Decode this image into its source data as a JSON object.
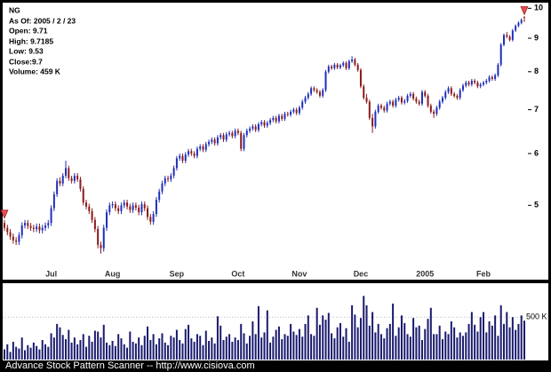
{
  "chart_data": {
    "type": "candlestick",
    "title": "NG",
    "info": [
      "As Of: 2005 / 2 / 23",
      "Open: 9.71",
      "High: 9.7185",
      "Low: 9.53",
      "Close:9.7",
      "Volume: 459 K"
    ],
    "categories": [
      null,
      null,
      null,
      null,
      null,
      null,
      null,
      null,
      null,
      null,
      null,
      null,
      null,
      null,
      null,
      null,
      "Jul",
      null,
      null,
      null,
      null,
      null,
      null,
      null,
      null,
      null,
      null,
      null,
      null,
      null,
      null,
      null,
      null,
      null,
      null,
      null,
      null,
      "Aug",
      null,
      null,
      null,
      null,
      null,
      null,
      null,
      null,
      null,
      null,
      null,
      null,
      null,
      null,
      null,
      null,
      null,
      null,
      null,
      null,
      null,
      "Sep",
      null,
      null,
      null,
      null,
      null,
      null,
      null,
      null,
      null,
      null,
      null,
      null,
      null,
      null,
      null,
      null,
      null,
      null,
      null,
      null,
      "Oct",
      null,
      null,
      null,
      null,
      null,
      null,
      null,
      null,
      null,
      null,
      null,
      null,
      null,
      null,
      null,
      null,
      null,
      null,
      null,
      null,
      "Nov",
      null,
      null,
      null,
      null,
      null,
      null,
      null,
      null,
      null,
      null,
      null,
      null,
      null,
      null,
      null,
      null,
      null,
      null,
      null,
      null,
      "Dec",
      null,
      null,
      null,
      null,
      null,
      null,
      null,
      null,
      null,
      null,
      null,
      null,
      null,
      null,
      null,
      null,
      null,
      null,
      null,
      null,
      null,
      "2005",
      null,
      null,
      null,
      null,
      null,
      null,
      null,
      null,
      null,
      null,
      null,
      null,
      null,
      null,
      null,
      null,
      null,
      null,
      null,
      "Feb",
      null,
      null,
      null,
      null,
      null,
      null,
      null,
      null,
      null,
      null,
      null,
      null,
      null,
      null
    ],
    "open": [
      4.7,
      4.62,
      4.55,
      4.48,
      4.42,
      4.4,
      4.5,
      4.66,
      4.7,
      4.65,
      4.62,
      4.6,
      4.64,
      4.58,
      4.62,
      4.66,
      4.7,
      4.95,
      5.2,
      5.45,
      5.4,
      5.55,
      5.7,
      5.5,
      5.45,
      5.55,
      5.48,
      5.3,
      5.05,
      4.98,
      4.9,
      4.75,
      4.6,
      4.35,
      4.3,
      4.62,
      4.88,
      5.0,
      5.02,
      4.95,
      4.9,
      5.0,
      5.05,
      4.98,
      4.92,
      5.0,
      4.96,
      4.88,
      5.02,
      4.95,
      4.8,
      4.72,
      4.85,
      5.1,
      5.25,
      5.4,
      5.5,
      5.48,
      5.55,
      5.7,
      5.9,
      5.95,
      5.85,
      5.98,
      6.05,
      6.0,
      5.95,
      6.1,
      6.15,
      6.08,
      6.2,
      6.25,
      6.3,
      6.22,
      6.35,
      6.4,
      6.3,
      6.42,
      6.45,
      6.38,
      6.5,
      6.45,
      6.1,
      6.4,
      6.5,
      6.55,
      6.6,
      6.52,
      6.65,
      6.7,
      6.62,
      6.68,
      6.75,
      6.8,
      6.72,
      6.85,
      6.78,
      6.9,
      6.88,
      6.95,
      7.0,
      6.92,
      7.05,
      7.2,
      7.3,
      7.4,
      7.55,
      7.5,
      7.45,
      7.35,
      7.5,
      8.0,
      8.15,
      8.1,
      8.2,
      8.12,
      8.18,
      8.25,
      8.1,
      8.3,
      8.35,
      8.2,
      8.05,
      7.6,
      7.3,
      7.2,
      6.8,
      6.6,
      6.95,
      7.1,
      7.05,
      6.98,
      7.15,
      7.2,
      7.1,
      7.25,
      7.3,
      7.18,
      7.22,
      7.35,
      7.4,
      7.28,
      7.2,
      7.15,
      7.45,
      7.35,
      7.1,
      6.95,
      6.9,
      7.05,
      7.2,
      7.3,
      7.45,
      7.55,
      7.4,
      7.35,
      7.3,
      7.5,
      7.62,
      7.7,
      7.65,
      7.75,
      7.7,
      7.6,
      7.65,
      7.7,
      7.75,
      7.85,
      7.8,
      7.9,
      8.2,
      8.8,
      9.1,
      9.05,
      8.95,
      9.25,
      9.4,
      9.5,
      9.71
    ],
    "high": [
      4.75,
      4.67,
      4.6,
      4.53,
      4.47,
      4.55,
      4.71,
      4.75,
      4.75,
      4.7,
      4.67,
      4.69,
      4.69,
      4.67,
      4.71,
      4.75,
      5.0,
      5.25,
      5.5,
      5.52,
      5.6,
      5.85,
      5.75,
      5.55,
      5.6,
      5.6,
      5.53,
      5.35,
      5.1,
      5.03,
      4.95,
      4.8,
      4.65,
      4.4,
      4.67,
      4.93,
      5.05,
      5.07,
      5.07,
      5.0,
      5.05,
      5.1,
      5.1,
      5.03,
      5.05,
      5.05,
      5.01,
      5.07,
      5.07,
      5.0,
      4.85,
      4.9,
      5.15,
      5.3,
      5.45,
      5.55,
      5.55,
      5.6,
      5.75,
      5.95,
      6.0,
      6.0,
      6.03,
      6.1,
      6.1,
      6.05,
      6.15,
      6.2,
      6.2,
      6.25,
      6.3,
      6.35,
      6.35,
      6.4,
      6.45,
      6.45,
      6.47,
      6.5,
      6.5,
      6.55,
      6.55,
      6.5,
      6.45,
      6.55,
      6.6,
      6.65,
      6.65,
      6.7,
      6.75,
      6.75,
      6.73,
      6.8,
      6.85,
      6.85,
      6.9,
      6.9,
      6.95,
      6.95,
      7.0,
      7.05,
      7.05,
      7.1,
      7.25,
      7.35,
      7.45,
      7.6,
      7.6,
      7.55,
      7.5,
      7.55,
      8.05,
      8.2,
      8.2,
      8.25,
      8.25,
      8.23,
      8.3,
      8.3,
      8.35,
      8.45,
      8.4,
      8.25,
      8.1,
      7.65,
      7.4,
      7.25,
      6.9,
      7.0,
      7.15,
      7.15,
      7.1,
      7.2,
      7.25,
      7.25,
      7.3,
      7.35,
      7.35,
      7.27,
      7.4,
      7.45,
      7.45,
      7.33,
      7.25,
      7.5,
      7.5,
      7.4,
      7.15,
      7.0,
      7.1,
      7.25,
      7.35,
      7.5,
      7.6,
      7.6,
      7.45,
      7.4,
      7.55,
      7.67,
      7.75,
      7.75,
      7.8,
      7.8,
      7.75,
      7.7,
      7.75,
      7.8,
      7.9,
      7.9,
      7.95,
      8.25,
      8.85,
      9.15,
      9.2,
      9.1,
      9.3,
      9.45,
      9.55,
      9.65,
      9.7185
    ],
    "low": [
      4.57,
      4.5,
      4.43,
      4.37,
      4.35,
      4.35,
      4.45,
      4.61,
      4.6,
      4.57,
      4.55,
      4.55,
      4.53,
      4.53,
      4.57,
      4.61,
      4.65,
      4.9,
      5.15,
      5.35,
      5.35,
      5.5,
      5.45,
      5.4,
      5.4,
      5.43,
      5.25,
      5.0,
      4.93,
      4.85,
      4.7,
      4.55,
      4.3,
      4.22,
      4.25,
      4.57,
      4.83,
      4.95,
      4.9,
      4.85,
      4.85,
      4.95,
      4.93,
      4.87,
      4.87,
      4.91,
      4.83,
      4.83,
      4.9,
      4.75,
      4.67,
      4.67,
      4.8,
      5.05,
      5.2,
      5.35,
      5.43,
      5.43,
      5.5,
      5.65,
      5.85,
      5.8,
      5.8,
      5.93,
      5.95,
      5.9,
      5.9,
      6.05,
      6.03,
      6.03,
      6.15,
      6.2,
      6.17,
      6.17,
      6.3,
      6.25,
      6.25,
      6.37,
      6.33,
      6.33,
      6.4,
      6.05,
      6.05,
      6.35,
      6.45,
      6.5,
      6.47,
      6.47,
      6.6,
      6.57,
      6.57,
      6.63,
      6.7,
      6.67,
      6.67,
      6.73,
      6.73,
      6.83,
      6.83,
      6.9,
      6.87,
      6.87,
      7.0,
      7.15,
      7.25,
      7.35,
      7.45,
      7.4,
      7.3,
      7.3,
      7.45,
      7.95,
      8.05,
      8.05,
      8.07,
      8.07,
      8.13,
      8.05,
      8.05,
      8.25,
      8.15,
      8.0,
      7.55,
      7.25,
      7.15,
      6.75,
      6.45,
      6.55,
      6.9,
      7.0,
      6.93,
      6.93,
      7.1,
      7.05,
      7.05,
      7.2,
      7.13,
      7.13,
      7.17,
      7.3,
      7.23,
      7.15,
      7.1,
      7.1,
      7.3,
      7.05,
      6.9,
      6.8,
      6.85,
      7.0,
      7.15,
      7.25,
      7.4,
      7.35,
      7.3,
      7.25,
      7.25,
      7.45,
      7.57,
      7.6,
      7.6,
      7.65,
      7.55,
      7.55,
      7.6,
      7.65,
      7.7,
      7.75,
      7.75,
      7.85,
      8.15,
      8.75,
      9.0,
      8.9,
      8.9,
      9.2,
      9.35,
      9.45,
      9.53
    ],
    "close": [
      4.62,
      4.55,
      4.48,
      4.42,
      4.4,
      4.5,
      4.66,
      4.7,
      4.65,
      4.62,
      4.6,
      4.64,
      4.58,
      4.62,
      4.66,
      4.7,
      4.95,
      5.2,
      5.45,
      5.4,
      5.55,
      5.7,
      5.5,
      5.45,
      5.55,
      5.48,
      5.3,
      5.05,
      4.98,
      4.9,
      4.75,
      4.6,
      4.35,
      4.3,
      4.62,
      4.88,
      5.0,
      5.02,
      4.95,
      4.9,
      5.0,
      5.05,
      4.98,
      4.92,
      5.0,
      4.96,
      4.88,
      5.02,
      4.95,
      4.8,
      4.72,
      4.85,
      5.1,
      5.25,
      5.4,
      5.5,
      5.48,
      5.55,
      5.7,
      5.9,
      5.95,
      5.85,
      5.98,
      6.05,
      6.0,
      5.95,
      6.1,
      6.15,
      6.08,
      6.2,
      6.25,
      6.3,
      6.22,
      6.35,
      6.4,
      6.3,
      6.42,
      6.45,
      6.38,
      6.5,
      6.45,
      6.1,
      6.4,
      6.5,
      6.55,
      6.6,
      6.52,
      6.65,
      6.7,
      6.62,
      6.68,
      6.75,
      6.8,
      6.72,
      6.85,
      6.78,
      6.9,
      6.88,
      6.95,
      7.0,
      6.92,
      7.05,
      7.2,
      7.3,
      7.4,
      7.55,
      7.5,
      7.45,
      7.35,
      7.5,
      8.0,
      8.15,
      8.1,
      8.2,
      8.12,
      8.18,
      8.25,
      8.1,
      8.3,
      8.35,
      8.2,
      8.05,
      7.6,
      7.3,
      7.2,
      6.8,
      6.6,
      6.95,
      7.1,
      7.05,
      6.98,
      7.15,
      7.2,
      7.1,
      7.25,
      7.3,
      7.18,
      7.22,
      7.35,
      7.4,
      7.28,
      7.2,
      7.15,
      7.45,
      7.35,
      7.1,
      6.95,
      6.9,
      7.05,
      7.2,
      7.3,
      7.45,
      7.55,
      7.4,
      7.35,
      7.3,
      7.5,
      7.62,
      7.7,
      7.65,
      7.75,
      7.7,
      7.6,
      7.65,
      7.7,
      7.75,
      7.85,
      7.8,
      7.9,
      8.2,
      8.8,
      9.1,
      9.05,
      8.95,
      9.25,
      9.4,
      9.5,
      9.6,
      9.7
    ],
    "up_color": "#1f2fb8",
    "down_color": "#8b1a1a",
    "log_scale": true,
    "ylim": [
      3.85,
      10.2
    ],
    "yticks": [
      5,
      6,
      7,
      8,
      9,
      10
    ],
    "volume": {
      "color": "#1a1a6e",
      "ylim": [
        0,
        900
      ],
      "yticks": [
        {
          "value": 500,
          "label": "500 K"
        }
      ],
      "values": [
        120,
        180,
        90,
        210,
        150,
        130,
        260,
        110,
        170,
        140,
        200,
        160,
        120,
        230,
        180,
        150,
        310,
        260,
        420,
        380,
        290,
        240,
        350,
        200,
        260,
        180,
        230,
        300,
        150,
        280,
        210,
        340,
        330,
        260,
        410,
        200,
        170,
        220,
        160,
        300,
        250,
        180,
        140,
        330,
        210,
        190,
        260,
        170,
        280,
        390,
        230,
        300,
        180,
        250,
        310,
        200,
        170,
        280,
        260,
        350,
        230,
        190,
        360,
        410,
        250,
        210,
        300,
        280,
        170,
        340,
        220,
        260,
        190,
        510,
        400,
        230,
        270,
        300,
        210,
        260,
        230,
        420,
        310,
        190,
        280,
        450,
        300,
        630,
        260,
        320,
        580,
        200,
        270,
        350,
        390,
        240,
        300,
        280,
        420,
        330,
        290,
        360,
        270,
        420,
        520,
        300,
        280,
        610,
        410,
        520,
        470,
        550,
        310,
        250,
        380,
        430,
        270,
        370,
        210,
        640,
        530,
        380,
        490,
        750,
        640,
        400,
        560,
        320,
        420,
        300,
        250,
        370,
        420,
        660,
        280,
        380,
        520,
        430,
        300,
        270,
        490,
        380,
        400,
        230,
        360,
        480,
        610,
        300,
        300,
        400,
        240,
        330,
        300,
        450,
        380,
        260,
        320,
        280,
        320,
        420,
        560,
        410,
        330,
        500,
        560,
        320,
        450,
        400,
        520,
        280,
        640,
        420,
        560,
        380,
        500,
        350,
        420,
        520,
        459
      ]
    }
  },
  "footer": "Advance Stock Pattern Scanner -- http://www.cisiova.com"
}
